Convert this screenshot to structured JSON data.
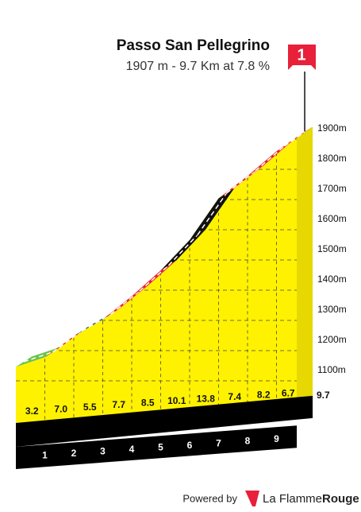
{
  "chart_data": {
    "type": "profile",
    "title": "Passo San Pellegrino",
    "subtitle": "1907 m - 9.7 Km at 7.8 %",
    "flag_label": "1",
    "x": [
      0,
      1,
      2,
      3,
      4,
      5,
      6,
      7,
      8,
      9,
      9.7
    ],
    "values": [
      1146,
      1178,
      1248,
      1303,
      1380,
      1465,
      1566,
      1704,
      1778,
      1860,
      1907
    ],
    "xticks": [
      1,
      2,
      3,
      4,
      5,
      6,
      7,
      8,
      9,
      9.7
    ],
    "ylim": [
      1000,
      1950
    ],
    "yticks": [
      {
        "value": 1100,
        "label": "1100m"
      },
      {
        "value": 1200,
        "label": "1200m"
      },
      {
        "value": 1300,
        "label": "1300m"
      },
      {
        "value": 1400,
        "label": "1400m"
      },
      {
        "value": 1500,
        "label": "1500m"
      },
      {
        "value": 1600,
        "label": "1600m"
      },
      {
        "value": 1700,
        "label": "1700m"
      },
      {
        "value": 1800,
        "label": "1800m"
      },
      {
        "value": 1900,
        "label": "1900m"
      }
    ],
    "segments": {
      "values": [
        3.2,
        7.0,
        5.5,
        7.7,
        8.5,
        10.1,
        13.8,
        7.4,
        8.2,
        6.7
      ],
      "value_labels": [
        "3.2",
        "7.0",
        "5.5",
        "7.7",
        "8.5",
        "10.1",
        "13.8",
        "7.4",
        "8.2",
        "6.7"
      ],
      "colors": [
        "#6cc24a",
        "#e8203a",
        "#1f5f86",
        "#e8203a",
        "#e8203a",
        "#111111",
        "#111111",
        "#e8203a",
        "#e8203a",
        "#e8203a"
      ]
    },
    "fill_color": "#fff200",
    "grid": true
  },
  "footer": {
    "powered_by": "Powered by",
    "brand": "La Flamme",
    "brand_bold": "Rouge"
  }
}
